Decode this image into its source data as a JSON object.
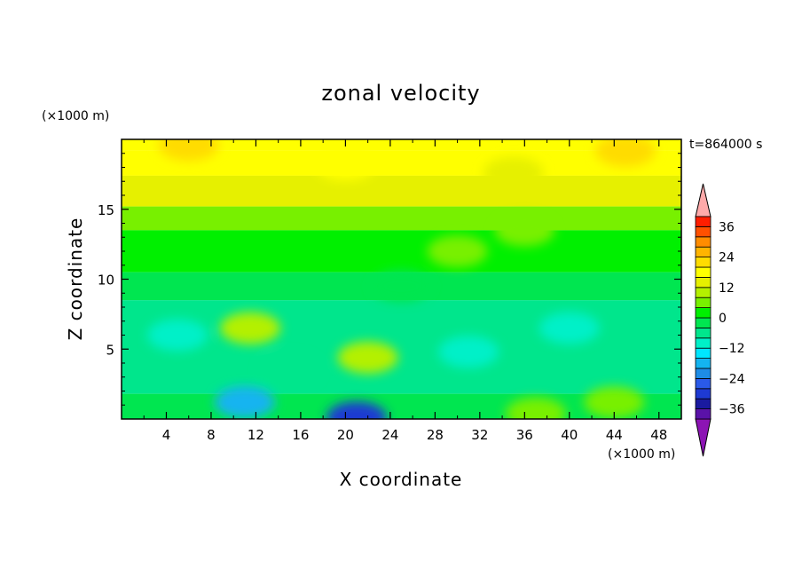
{
  "chart_data": {
    "type": "heatmap",
    "title": "zonal velocity",
    "xlabel": "X coordinate",
    "ylabel": "Z coordinate",
    "x_unit": "(×1000 m)",
    "y_unit": "(×1000 m)",
    "time_label": "t=864000 s",
    "xlim": [
      0,
      50
    ],
    "ylim": [
      0,
      20
    ],
    "x_ticks": [
      4,
      8,
      12,
      16,
      20,
      24,
      28,
      32,
      36,
      40,
      44,
      48
    ],
    "y_ticks": [
      5,
      10,
      15
    ],
    "x_tick_labels": [
      "4",
      "8",
      "12",
      "16",
      "20",
      "24",
      "28",
      "32",
      "36",
      "40",
      "44",
      "48"
    ],
    "y_tick_labels": [
      "5",
      "10",
      "15"
    ],
    "colorbar": {
      "levels": [
        -40,
        -36,
        -32,
        -28,
        -24,
        -20,
        -16,
        -12,
        -8,
        -4,
        0,
        4,
        8,
        12,
        16,
        20,
        24,
        28,
        32,
        36,
        40
      ],
      "colors": [
        "#5a12a8",
        "#1a1aa0",
        "#1e3ad2",
        "#2a5ae8",
        "#1e8ce6",
        "#14b4f0",
        "#00e6ff",
        "#00f0c8",
        "#00e68c",
        "#00e650",
        "#00f000",
        "#78f000",
        "#b4f000",
        "#e6f000",
        "#ffff00",
        "#ffdc00",
        "#ffb400",
        "#ff8c00",
        "#ff5000",
        "#ff1e00"
      ],
      "under_color": "#8c14b4",
      "over_color": "#ffaaaa",
      "tick_values": [
        36,
        24,
        12,
        0,
        -12,
        -24,
        -36
      ],
      "tick_labels": [
        "36",
        "24",
        "12",
        "0",
        "−12",
        "−24",
        "−36"
      ]
    },
    "features": [
      {
        "x": 6,
        "z": 19.6,
        "value": 22
      },
      {
        "x": 20,
        "z": 18.2,
        "value": 17
      },
      {
        "x": 45,
        "z": 19.2,
        "value": 20
      },
      {
        "x": 35,
        "z": 17.6,
        "value": 15
      },
      {
        "x": 11.5,
        "z": 6.5,
        "value": 8
      },
      {
        "x": 22,
        "z": 4.4,
        "value": 10
      },
      {
        "x": 37,
        "z": 0.4,
        "value": 6
      },
      {
        "x": 44,
        "z": 1.2,
        "value": 4
      },
      {
        "x": 5,
        "z": 6,
        "value": -11
      },
      {
        "x": 15,
        "z": 3.5,
        "value": -7
      },
      {
        "x": 21,
        "z": 0.1,
        "value": -30
      },
      {
        "x": 11,
        "z": 1.2,
        "value": -18
      },
      {
        "x": 31,
        "z": 4.8,
        "value": -12
      },
      {
        "x": 40,
        "z": 6.5,
        "value": -10
      },
      {
        "x": 25,
        "z": 9.5,
        "value": -4
      },
      {
        "x": 30,
        "z": 12,
        "value": 4
      },
      {
        "x": 36,
        "z": 13.5,
        "value": 4
      }
    ]
  }
}
